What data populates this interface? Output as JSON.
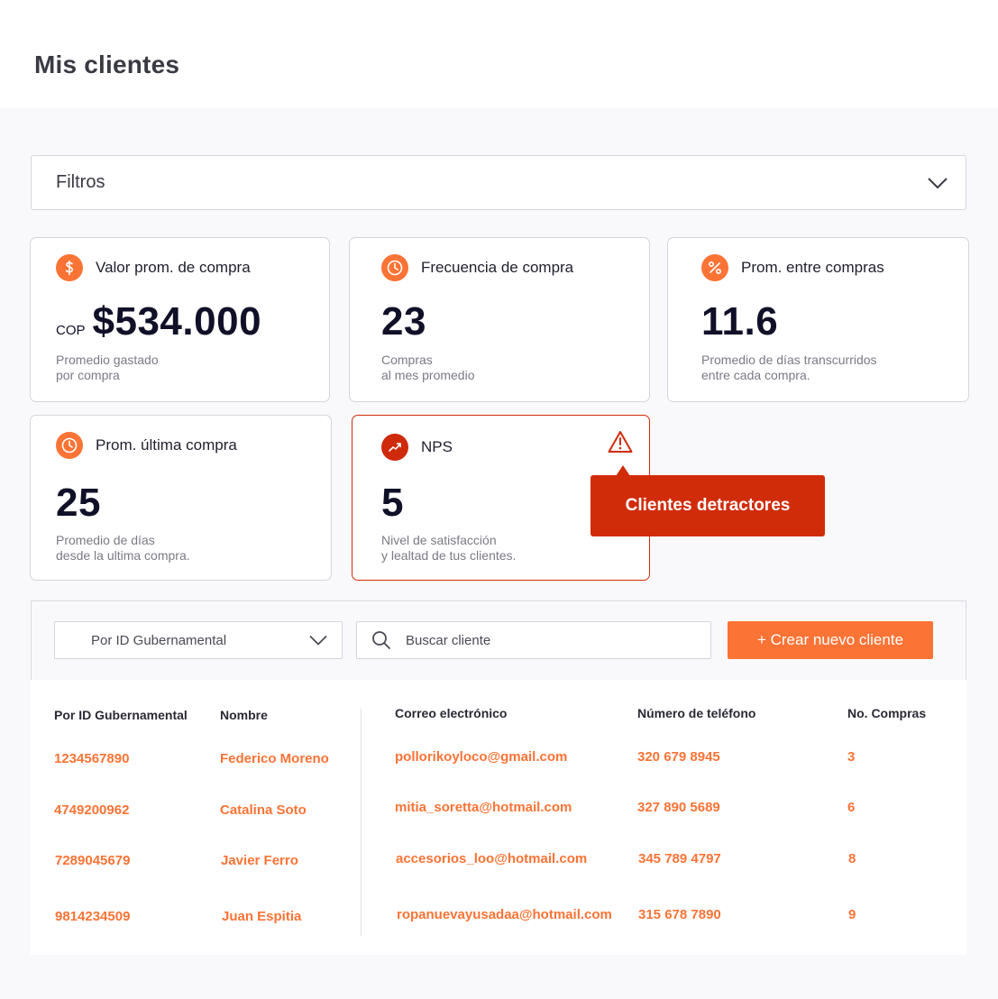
{
  "page": {
    "title": "Mis clientes"
  },
  "filters": {
    "label": "Filtros"
  },
  "cards": {
    "valor": {
      "title": "Valor prom. de compra",
      "icon": "dollar-icon",
      "prefix": "COP",
      "value": "$534.000",
      "desc": "Promedio gastado\npor compra"
    },
    "frecuencia": {
      "title": "Frecuencia de compra",
      "icon": "clock-icon",
      "value": "23",
      "desc": "Compras\nal mes promedio"
    },
    "entre": {
      "title": "Prom. entre compras",
      "icon": "percent-icon",
      "value": "11.6",
      "desc": "Promedio de días transcurridos\nentre cada compra."
    },
    "ultima": {
      "title": "Prom. última compra",
      "icon": "clock-icon",
      "value": "25",
      "desc": "Promedio de días\ndesde la ultima compra."
    },
    "nps": {
      "title": "NPS",
      "icon": "trend-icon",
      "value": "5",
      "desc": "Nivel de satisfacción\ny lealtad de tus clientes."
    }
  },
  "tooltip": {
    "text": "Clientes detractores"
  },
  "toolbar": {
    "select_value": "Por ID Gubernamental",
    "search_placeholder": "Buscar cliente",
    "create_label": "+ Crear nuevo cliente"
  },
  "table": {
    "headers": [
      "Por ID Gubernamental",
      "Nombre",
      "Correo electrónico",
      "Número de teléfono",
      "No. Compras"
    ],
    "rows": [
      {
        "id": "1234567890",
        "name": "Federico Moreno",
        "email": "pollorikoyloco@gmail.com",
        "phone": "320 679 8945",
        "purchases": "3"
      },
      {
        "id": "4749200962",
        "name": "Catalina Soto",
        "email": "mitia_soretta@hotmail.com",
        "phone": "327 890 5689",
        "purchases": "6"
      },
      {
        "id": "7289045679",
        "name": "Javier Ferro",
        "email": "accesorios_loo@hotmail.com",
        "phone": "345 789 4797",
        "purchases": "8"
      },
      {
        "id": "9814234509",
        "name": "Juan Espitia",
        "email": "ropanuevayusadaa@hotmail.com",
        "phone": "315 678 7890",
        "purchases": "9"
      }
    ]
  },
  "colors": {
    "accent": "#fb7335",
    "alert": "#d12c0a",
    "text": "#1f1f2e"
  }
}
